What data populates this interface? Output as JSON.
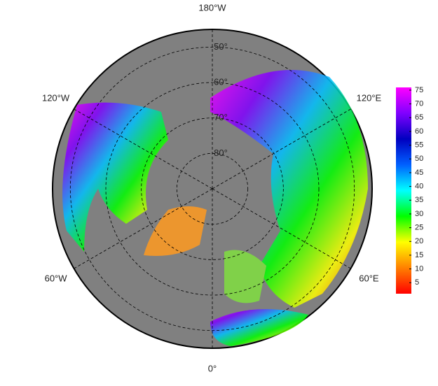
{
  "map": {
    "lat_range": [
      45,
      90
    ],
    "latitudes": [
      {
        "value": 50,
        "label": "50°"
      },
      {
        "value": 60,
        "label": "60°"
      },
      {
        "value": 70,
        "label": "70°"
      },
      {
        "value": 80,
        "label": "80°"
      }
    ],
    "longitudes": [
      {
        "value": 180,
        "label": "180°W"
      },
      {
        "value": -120,
        "label": "120°W"
      },
      {
        "value": 120,
        "label": "120°E"
      },
      {
        "value": -60,
        "label": "60°W"
      },
      {
        "value": 60,
        "label": "60°E"
      },
      {
        "value": 0,
        "label": "0°"
      }
    ],
    "colorbar": {
      "lim": [
        1,
        76
      ],
      "ticks": [
        5,
        10,
        15,
        20,
        25,
        30,
        35,
        40,
        45,
        50,
        55,
        60,
        65,
        70,
        75
      ],
      "colormap": [
        "#ff0000",
        "#ff8000",
        "#ffff00",
        "#00ff00",
        "#00ffff",
        "#0060ff",
        "#0000c0",
        "#8000ff",
        "#ff00ff"
      ]
    }
  }
}
